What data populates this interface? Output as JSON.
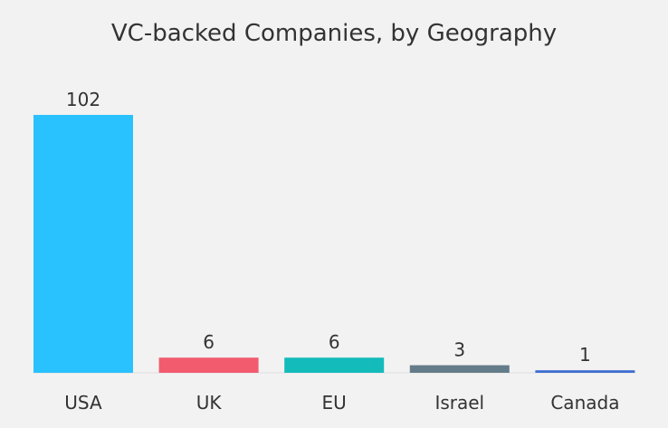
{
  "chart_data": {
    "type": "bar",
    "title": "VC-backed Companies, by Geography",
    "xlabel": "",
    "ylabel": "",
    "categories": [
      "USA",
      "UK",
      "EU",
      "Israel",
      "Canada"
    ],
    "values": [
      102,
      6,
      6,
      3,
      1
    ],
    "colors": [
      "#29c2fe",
      "#f25b6e",
      "#13bbbb",
      "#647c89",
      "#3d6ed1"
    ],
    "ylim": [
      0,
      102
    ],
    "grid": false,
    "legend": "none"
  }
}
